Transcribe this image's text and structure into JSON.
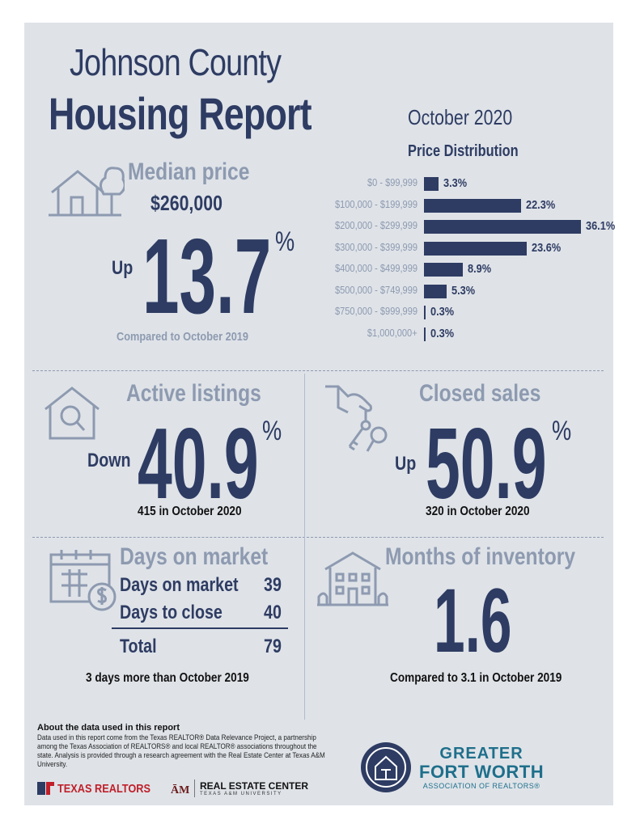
{
  "header": {
    "title_line1": "Johnson County",
    "title_line2": "Housing Report",
    "month": "October 2020"
  },
  "median": {
    "title": "Median price",
    "price": "$260,000",
    "direction": "Up",
    "change": "13.7",
    "pct": "%",
    "note": "Compared to October 2019",
    "icon": "house-tree-icon"
  },
  "chart_data": {
    "type": "bar",
    "title": "Price Distribution",
    "categories": [
      "$0 - $99,999",
      "$100,000 - $199,999",
      "$200,000 - $299,999",
      "$300,000 - $399,999",
      "$400,000 - $499,999",
      "$500,000 - $749,999",
      "$750,000 - $999,999",
      "$1,000,000+"
    ],
    "values": [
      3.3,
      22.3,
      36.1,
      23.6,
      8.9,
      5.3,
      0.3,
      0.3
    ],
    "value_labels": [
      "3.3%",
      "22.3%",
      "36.1%",
      "23.6%",
      "8.9%",
      "5.3%",
      "0.3%",
      "0.3%"
    ],
    "orientation": "horizontal",
    "xlim": [
      0,
      36.1
    ],
    "color": "#2e3c63"
  },
  "active": {
    "title": "Active listings",
    "direction": "Down",
    "change": "40.9",
    "pct": "%",
    "note": "415 in October 2020",
    "icon": "house-search-icon"
  },
  "closed": {
    "title": "Closed sales",
    "direction": "Up",
    "change": "50.9",
    "pct": "%",
    "note": "320 in October 2020",
    "icon": "hand-keys-icon"
  },
  "days": {
    "title": "Days on market",
    "rows": [
      {
        "label": "Days on market",
        "value": "39"
      },
      {
        "label": "Days to close",
        "value": "40"
      }
    ],
    "total_label": "Total",
    "total_value": "79",
    "note": "3 days more than October 2019",
    "icon": "calendar-dollar-icon"
  },
  "inventory": {
    "title": "Months of inventory",
    "value": "1.6",
    "note": "Compared to 3.1 in October 2019",
    "icon": "building-icon"
  },
  "footer": {
    "heading": "About the data used in this report",
    "text": "Data used in this report come from the Texas REALTOR® Data Relevance Project, a partnership among the Texas Association of REALTORS® and local REALTOR® associations throughout the state. Analysis is provided through a research agreement with the Real Estate Center at Texas A&M University.",
    "logo1_text": "TEXAS REALTORS",
    "logo2_text": "REAL ESTATE CENTER",
    "logo2_sub": "TEXAS A&M UNIVERSITY",
    "logo3_line1": "GREATER",
    "logo3_line2": "FORT WORTH",
    "logo3_line3": "ASSOCIATION OF REALTORS®"
  },
  "colors": {
    "navy": "#2e3c63",
    "pale": "#8d9ab0",
    "background": "#dfe3e8",
    "teal": "#1f6f8b",
    "red": "#c0202a"
  }
}
